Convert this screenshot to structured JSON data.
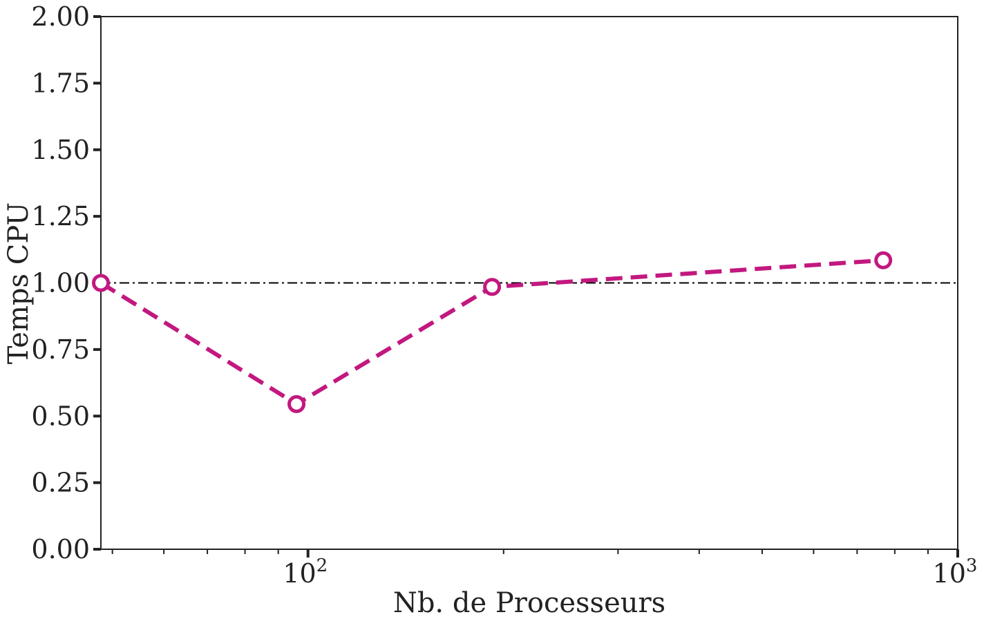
{
  "chart_data": {
    "type": "line",
    "title": "",
    "xlabel": "Nb. de Processeurs",
    "ylabel": "Temps CPU",
    "x_scale": "log",
    "xlim": [
      48,
      1000
    ],
    "ylim": [
      0,
      2
    ],
    "y_ticks": [
      "0.00",
      "0.25",
      "0.50",
      "0.75",
      "1.00",
      "1.25",
      "1.50",
      "1.75",
      "2.00"
    ],
    "x_ticks": [
      {
        "base": "10",
        "exp": "2",
        "value": 100
      },
      {
        "base": "10",
        "exp": "3",
        "value": 1000
      }
    ],
    "grid": false,
    "reference_line": {
      "y": 1.0,
      "style": "dash-dot",
      "color": "#000000"
    },
    "series": [
      {
        "color": "#c2187f",
        "style": "dashed",
        "marker": "open-circle",
        "x": [
          48,
          96,
          192,
          768
        ],
        "y": [
          1.0,
          0.545,
          0.985,
          1.085
        ]
      }
    ]
  }
}
